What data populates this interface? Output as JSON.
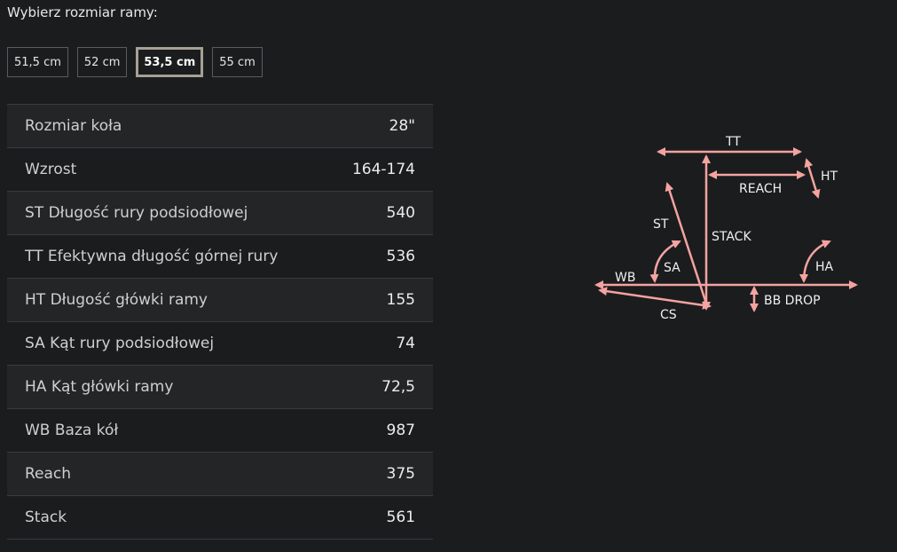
{
  "heading": "Wybierz rozmiar ramy:",
  "sizes": [
    {
      "label": "51,5 cm",
      "selected": false
    },
    {
      "label": "52 cm",
      "selected": false
    },
    {
      "label": "53,5 cm",
      "selected": true
    },
    {
      "label": "55 cm",
      "selected": false
    }
  ],
  "specs": [
    {
      "label": "Rozmiar koła",
      "value": "28\""
    },
    {
      "label": "Wzrost",
      "value": "164-174"
    },
    {
      "label": "ST Długość rury podsiodłowej",
      "value": "540"
    },
    {
      "label": "TT Efektywna długość górnej rury",
      "value": "536"
    },
    {
      "label": "HT Długość główki ramy",
      "value": "155"
    },
    {
      "label": "SA Kąt rury podsiodłowej",
      "value": "74"
    },
    {
      "label": "HA Kąt główki ramy",
      "value": "72,5"
    },
    {
      "label": "WB Baza kół",
      "value": "987"
    },
    {
      "label": "Reach",
      "value": "375"
    },
    {
      "label": "Stack",
      "value": "561"
    }
  ],
  "diagram": {
    "labels": {
      "tt": "TT",
      "ht": "HT",
      "reach": "REACH",
      "st": "ST",
      "stack": "STACK",
      "sa": "SA",
      "ha": "HA",
      "wb": "WB",
      "cs": "CS",
      "bb_drop": "BB DROP"
    },
    "arrow_color": "#f4a3a0"
  }
}
